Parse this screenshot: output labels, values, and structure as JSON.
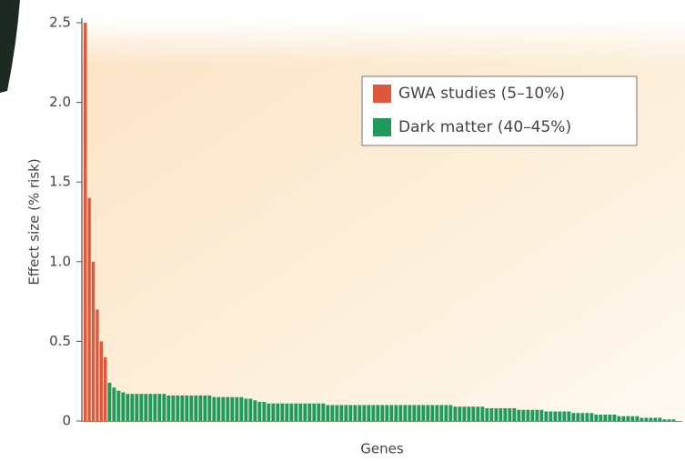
{
  "chart_data": {
    "type": "bar",
    "y_label": "Effect size (% risk)",
    "x_label": "Genes",
    "ylim": [
      0,
      2.5
    ],
    "yticks": [
      0,
      0.5,
      {
        "value": 1,
        "label": "1.0"
      },
      1.5,
      {
        "value": 2,
        "label": "2.0"
      },
      2.5
    ],
    "series": [
      {
        "name": "GWA studies (5–10%)",
        "color": "#e0573b",
        "values": [
          2.5,
          1.4,
          1.0,
          0.7,
          0.5,
          0.4
        ]
      },
      {
        "name": "Dark matter (40–45%)",
        "color": "#1f9a5c",
        "values": [
          0.24,
          0.21,
          0.19,
          0.18,
          0.17,
          0.17,
          0.17,
          0.17,
          0.17,
          0.17,
          0.17,
          0.17,
          0.17,
          0.16,
          0.16,
          0.16,
          0.16,
          0.16,
          0.16,
          0.16,
          0.16,
          0.16,
          0.16,
          0.15,
          0.15,
          0.15,
          0.15,
          0.15,
          0.15,
          0.15,
          0.14,
          0.14,
          0.13,
          0.12,
          0.12,
          0.11,
          0.11,
          0.11,
          0.11,
          0.11,
          0.11,
          0.11,
          0.11,
          0.11,
          0.11,
          0.11,
          0.11,
          0.11,
          0.1,
          0.1,
          0.1,
          0.1,
          0.1,
          0.1,
          0.1,
          0.1,
          0.1,
          0.1,
          0.1,
          0.1,
          0.1,
          0.1,
          0.1,
          0.1,
          0.1,
          0.1,
          0.1,
          0.1,
          0.1,
          0.1,
          0.1,
          0.1,
          0.1,
          0.1,
          0.1,
          0.1,
          0.09,
          0.09,
          0.09,
          0.09,
          0.09,
          0.09,
          0.09,
          0.08,
          0.08,
          0.08,
          0.08,
          0.08,
          0.08,
          0.08,
          0.07,
          0.07,
          0.07,
          0.07,
          0.07,
          0.07,
          0.06,
          0.06,
          0.06,
          0.06,
          0.06,
          0.06,
          0.05,
          0.05,
          0.05,
          0.05,
          0.05,
          0.04,
          0.04,
          0.04,
          0.04,
          0.04,
          0.03,
          0.03,
          0.03,
          0.03,
          0.03,
          0.02,
          0.02,
          0.02,
          0.02,
          0.02,
          0.01,
          0.01,
          0.01
        ]
      }
    ],
    "legend": "upper right"
  }
}
